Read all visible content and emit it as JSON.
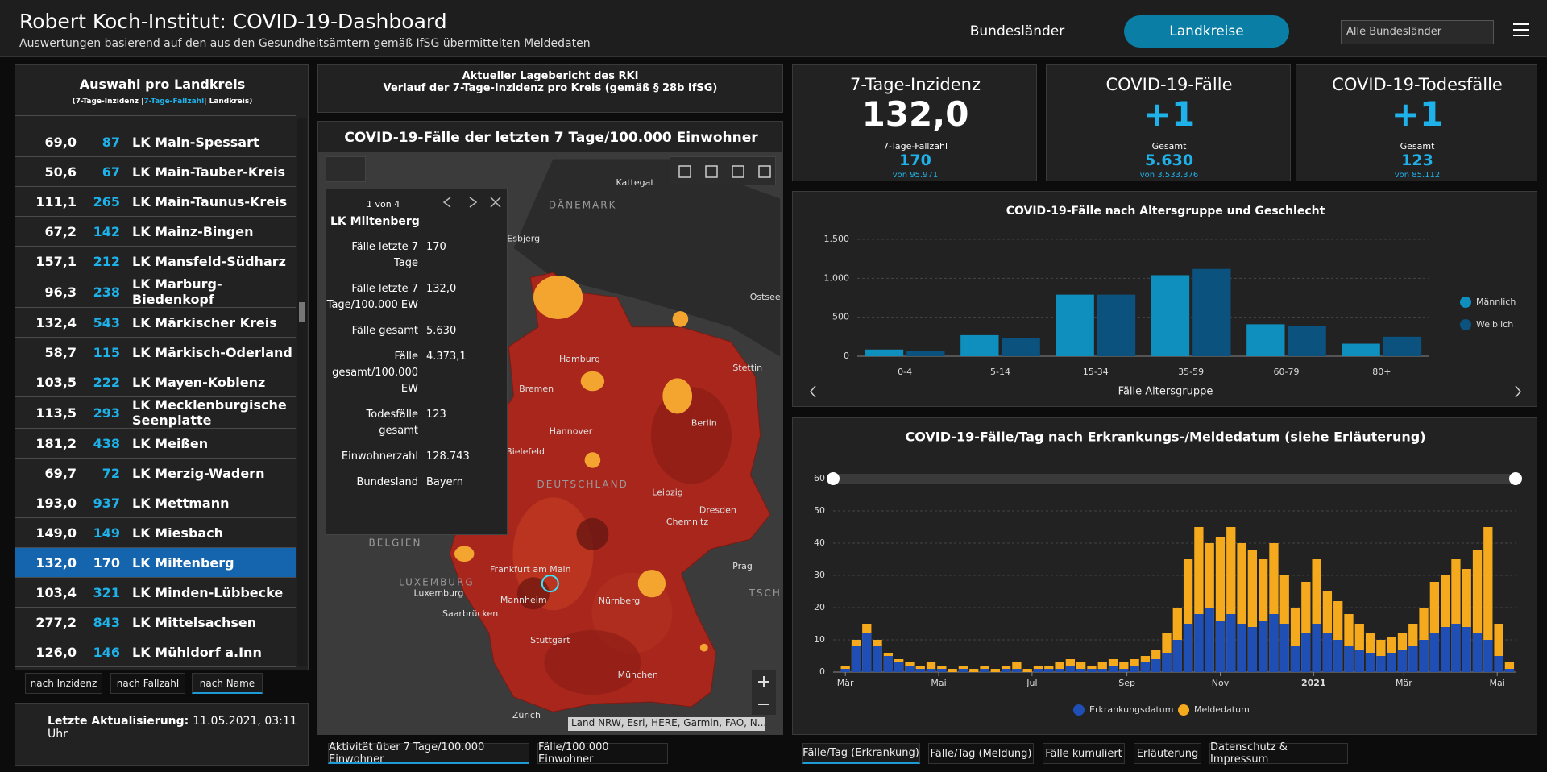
{
  "header": {
    "title": "Robert Koch-Institut: COVID-19-Dashboard",
    "subtitle": "Auswertungen basierend auf den aus den Gesundheitsämtern gemäß IfSG übermittelten Meldedaten",
    "nav": [
      "Bundesländer",
      "Landkreise"
    ],
    "dropdown": "Alle Bundesländer"
  },
  "list": {
    "title": "Auswahl pro Landkreis",
    "subtitle": [
      "(7-Tage-Inzidenz |",
      "7-Tage-Fallzahl",
      "| Landkreis)"
    ],
    "rows": [
      [
        "69,0",
        "87",
        "LK Main-Spessart"
      ],
      [
        "50,6",
        "67",
        "LK Main-Tauber-Kreis"
      ],
      [
        "111,1",
        "265",
        "LK Main-Taunus-Kreis"
      ],
      [
        "67,2",
        "142",
        "LK Mainz-Bingen"
      ],
      [
        "157,1",
        "212",
        "LK Mansfeld-Südharz"
      ],
      [
        "96,3",
        "238",
        "LK Marburg-Biedenkopf"
      ],
      [
        "132,4",
        "543",
        "LK Märkischer Kreis"
      ],
      [
        "58,7",
        "115",
        "LK Märkisch-Oderland"
      ],
      [
        "103,5",
        "222",
        "LK Mayen-Koblenz"
      ],
      [
        "113,5",
        "293",
        "LK Mecklenburgische Seenplatte"
      ],
      [
        "181,2",
        "438",
        "LK Meißen"
      ],
      [
        "69,7",
        "72",
        "LK Merzig-Wadern"
      ],
      [
        "193,0",
        "937",
        "LK Mettmann"
      ],
      [
        "149,0",
        "149",
        "LK Miesbach"
      ],
      [
        "132,0",
        "170",
        "LK Miltenberg"
      ],
      [
        "103,4",
        "321",
        "LK Minden-Lübbecke"
      ],
      [
        "277,2",
        "843",
        "LK Mittelsachsen"
      ],
      [
        "126,0",
        "146",
        "LK Mühldorf a.Inn"
      ]
    ],
    "selected": 14,
    "sort_buttons": [
      "nach Inzidenz",
      "nach Fallzahl",
      "nach Name"
    ],
    "active_sort": 2
  },
  "update": {
    "label": "Letzte Aktualisierung:",
    "value": "11.05.2021, 03:11 Uhr"
  },
  "report": {
    "line1": "Aktueller Lagebericht des RKI",
    "line2": "Verlauf der 7-Tage-Inzidenz pro Kreis (gemäß § 28b IfSG)"
  },
  "map": {
    "title": "COVID-19-Fälle der letzten 7 Tage/100.000 Einwohner",
    "popup": {
      "counter": "1 von 4",
      "name": "LK Miltenberg",
      "fields": [
        [
          "Fälle letzte 7 Tage",
          "170"
        ],
        [
          "Fälle letzte 7 Tage/100.000 EW",
          "132,0"
        ],
        [
          "Fälle gesamt",
          "5.630"
        ],
        [
          "Fälle gesamt/100.000 EW",
          "4.373,1"
        ],
        [
          "Todesfälle gesamt",
          "123"
        ],
        [
          "Einwohnerzahl",
          "128.743"
        ],
        [
          "Bundesland",
          "Bayern"
        ]
      ]
    },
    "labels": [
      "Kattegat",
      "DÄNEMARK",
      "Esbjerg",
      "Ostsee",
      "Hamburg",
      "Stettin",
      "Bremen",
      "Hannover",
      "Berlin",
      "Bielefeld",
      "DEUTSCHLAND",
      "Leipzig",
      "Dresden",
      "Chemnitz",
      "BELGIEN",
      "Prag",
      "Frankfurt am Main",
      "LUXEMBURG",
      "Luxemburg",
      "Mannheim",
      "Nürnberg",
      "Saarbrücken",
      "TSCH",
      "Stuttgart",
      "München",
      "Zürich"
    ],
    "attribution": "Land NRW, Esri, HERE, Garmin, FAO, N...",
    "tabs": [
      "Aktivität über 7 Tage/100.000 Einwohner",
      "Fälle/100.000 Einwohner"
    ],
    "active_tab": 0
  },
  "kpis": [
    {
      "title": "7-Tage-Inzidenz",
      "value": "132,0",
      "sub_label": "7-Tage-Fallzahl",
      "sub_value": "170",
      "sub_of": "von 95.971"
    },
    {
      "title": "COVID-19-Fälle",
      "value": "+1",
      "sub_label": "Gesamt",
      "sub_value": "5.630",
      "sub_of": "von 3.533.376"
    },
    {
      "title": "COVID-19-Todesfälle",
      "value": "+1",
      "sub_label": "Gesamt",
      "sub_value": "123",
      "sub_of": "von 85.112"
    }
  ],
  "chart_data": [
    {
      "type": "bar",
      "barmode": "group",
      "title": "COVID-19-Fälle nach Altersgruppe und Geschlecht",
      "x_label": "Fälle Altersgruppe",
      "categories": [
        "0-4",
        "5-14",
        "15-34",
        "35-59",
        "60-79",
        "80+"
      ],
      "series": [
        {
          "name": "Männlich",
          "color": "#0e8fbd",
          "values": [
            85,
            270,
            790,
            1040,
            410,
            160
          ]
        },
        {
          "name": "Weiblich",
          "color": "#0b537e",
          "values": [
            70,
            230,
            790,
            1120,
            390,
            250
          ]
        }
      ],
      "ylim": [
        0,
        1500
      ],
      "yticks": [
        0,
        500,
        {
          "value": 1000,
          "label": "1.000"
        },
        {
          "value": 1500,
          "label": "1.500"
        }
      ],
      "grid": true,
      "legend": "right"
    },
    {
      "type": "bar",
      "barmode": "overlay",
      "title": "COVID-19-Fälle/Tag nach Erkrankungs-/Meldedatum (siehe Erläuterung)",
      "x": [
        0,
        7,
        14,
        21,
        28,
        35,
        42,
        49,
        56,
        63,
        70,
        77,
        84,
        91,
        98,
        105,
        112,
        119,
        126,
        133,
        140,
        147,
        154,
        161,
        168,
        175,
        182,
        189,
        196,
        203,
        210,
        217,
        224,
        231,
        238,
        245,
        252,
        259,
        266,
        273,
        280,
        287,
        294,
        301,
        308,
        315,
        322,
        329,
        336,
        343,
        350,
        357,
        364,
        371,
        378,
        385,
        392,
        399,
        406,
        413,
        420,
        427,
        434
      ],
      "series": [
        {
          "name": "Erkrankungsdatum",
          "color": "#1f4fb5",
          "values": [
            1,
            8,
            12,
            8,
            5,
            3,
            2,
            1,
            1,
            1,
            0,
            1,
            0,
            1,
            0,
            1,
            1,
            0,
            1,
            1,
            1,
            2,
            1,
            1,
            1,
            2,
            1,
            2,
            3,
            4,
            6,
            10,
            15,
            18,
            20,
            16,
            18,
            15,
            14,
            16,
            18,
            15,
            8,
            12,
            15,
            12,
            10,
            8,
            7,
            6,
            5,
            6,
            7,
            8,
            10,
            12,
            14,
            15,
            14,
            12,
            10,
            5,
            1
          ]
        },
        {
          "name": "Meldedatum",
          "color": "#f5a91d",
          "values": [
            2,
            10,
            15,
            10,
            6,
            4,
            3,
            2,
            3,
            2,
            1,
            2,
            1,
            2,
            1,
            2,
            3,
            1,
            2,
            2,
            3,
            4,
            3,
            2,
            3,
            4,
            3,
            4,
            5,
            7,
            12,
            20,
            35,
            45,
            40,
            42,
            45,
            40,
            38,
            35,
            40,
            30,
            20,
            28,
            35,
            25,
            22,
            18,
            15,
            12,
            10,
            11,
            12,
            15,
            20,
            28,
            30,
            35,
            32,
            38,
            45,
            15,
            3
          ]
        }
      ],
      "xlim": [
        -8,
        438
      ],
      "xticks": [
        {
          "value": 0,
          "label": "Mär"
        },
        {
          "value": 61,
          "label": "Mai"
        },
        {
          "value": 122,
          "label": "Jul"
        },
        {
          "value": 184,
          "label": "Sep"
        },
        {
          "value": 245,
          "label": "Nov"
        },
        {
          "value": 306,
          "label": "2021"
        },
        {
          "value": 365,
          "label": "Mär"
        },
        {
          "value": 426,
          "label": "Mai"
        }
      ],
      "ylim": [
        0,
        60
      ],
      "yticks": [
        0,
        10,
        20,
        30,
        40,
        50,
        60
      ],
      "grid": true,
      "legend": "bottom"
    }
  ],
  "bottom_tabs": [
    "Fälle/Tag (Erkrankung)",
    "Fälle/Tag (Meldung)",
    "Fälle kumuliert",
    "Erläuterung",
    "Datenschutz & Impressum"
  ],
  "active_bottom_tab": 0
}
